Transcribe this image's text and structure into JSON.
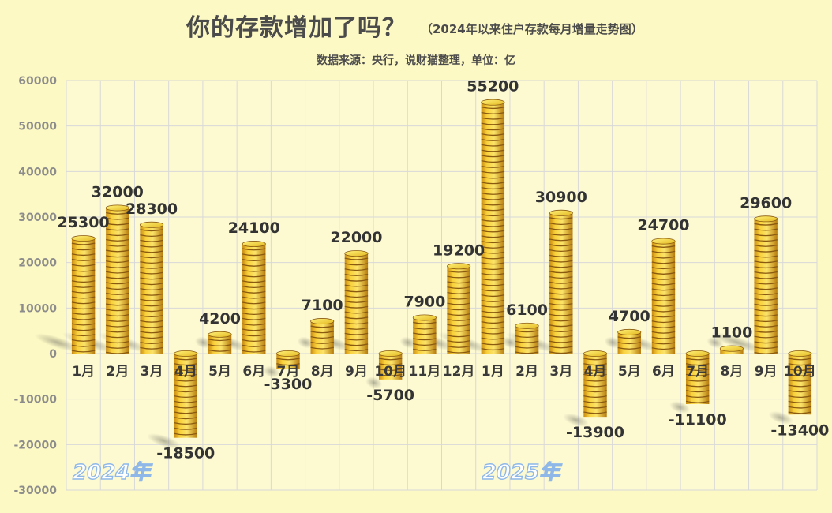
{
  "header": {
    "title": "你的存款增加了吗？",
    "subtitle": "（2024年以来住户存款每月增量走势图）",
    "source": "数据来源：央行，说财猫整理，单位：亿"
  },
  "chart_data": {
    "type": "bar",
    "title": "你的存款增加了吗？",
    "subtitle": "（2024年以来住户存款每月增量走势图）",
    "unit": "亿",
    "categories": [
      "1月",
      "2月",
      "3月",
      "4月",
      "5月",
      "6月",
      "7月",
      "8月",
      "9月",
      "10月",
      "11月",
      "12月",
      "1月",
      "2月",
      "3月",
      "4月",
      "5月",
      "6月",
      "7月",
      "8月",
      "9月",
      "10月"
    ],
    "values": [
      25300,
      32000,
      28300,
      -18500,
      4200,
      24100,
      -3300,
      7100,
      22000,
      -5700,
      7900,
      19200,
      55200,
      6100,
      30900,
      -13900,
      4700,
      24700,
      -11100,
      1100,
      29600,
      -13400
    ],
    "year_groups": [
      {
        "label": "2024年",
        "from_index": 0,
        "to_index": 11
      },
      {
        "label": "2025年",
        "from_index": 12,
        "to_index": 21
      }
    ],
    "yticks": [
      "60000",
      "50000",
      "40000",
      "30000",
      "20000",
      "10000",
      "0",
      "-10000",
      "-20000",
      "-30000"
    ],
    "ylim": [
      -30000,
      60000
    ],
    "grid": true,
    "colors": {
      "coin_face": "#f4c430",
      "coin_edge": "#8a5a10",
      "coin_top": "#f7e33a",
      "grid": "#d8d8d8",
      "plot_bg": "#fdfad0",
      "axis_text": "#8c8c8c",
      "year_text": "#8fb8e8"
    }
  }
}
